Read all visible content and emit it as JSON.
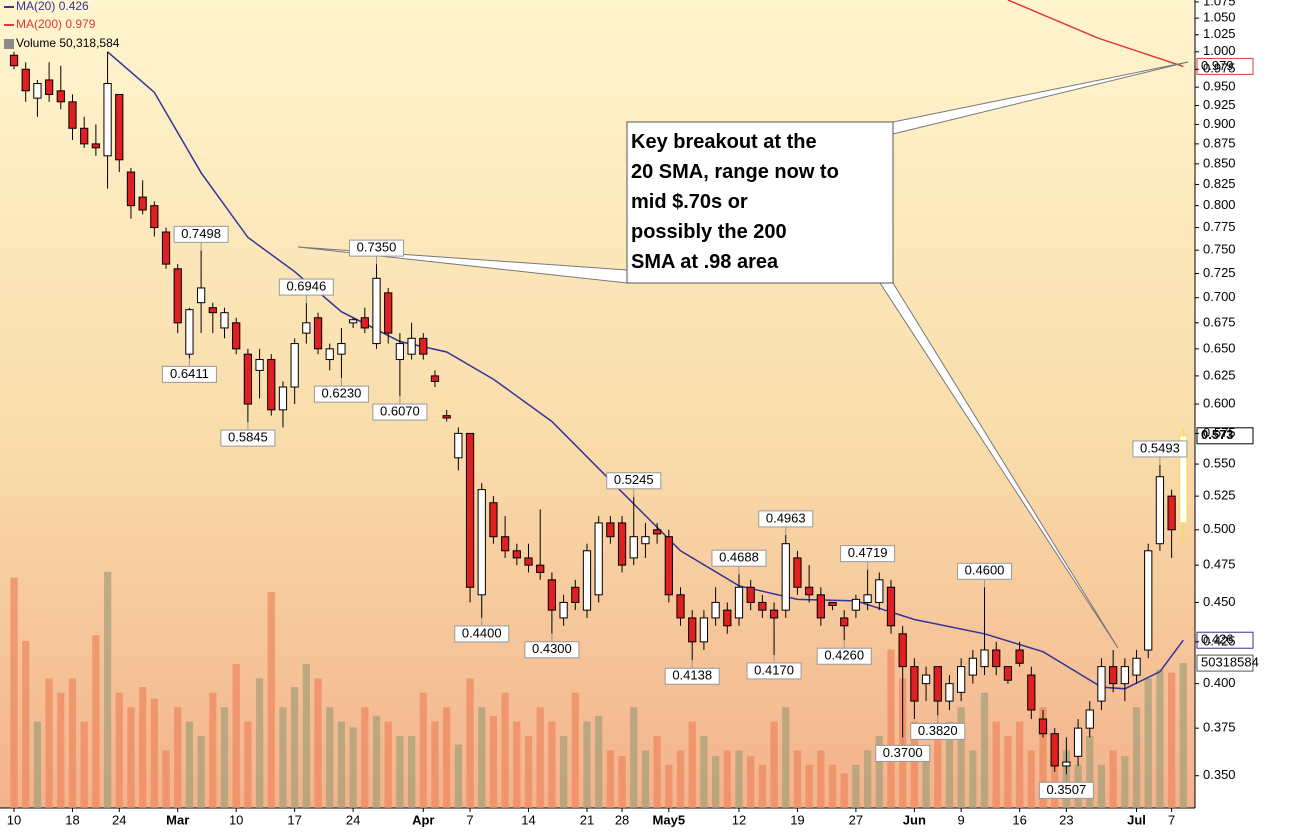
{
  "chart_data": {
    "type": "candlestick",
    "log": true,
    "grid": false,
    "xlim": [
      -1.2,
      101
    ],
    "ylim": [
      0.334,
      1.078
    ],
    "xticks": [
      {
        "value": 0,
        "label": "10"
      },
      {
        "value": 5,
        "label": "18"
      },
      {
        "value": 9,
        "label": "24"
      },
      {
        "value": 14,
        "label": "Mar"
      },
      {
        "value": 19,
        "label": "10"
      },
      {
        "value": 24,
        "label": "17"
      },
      {
        "value": 29,
        "label": "24"
      },
      {
        "value": 35,
        "label": "Apr"
      },
      {
        "value": 39,
        "label": "7"
      },
      {
        "value": 44,
        "label": "14"
      },
      {
        "value": 49,
        "label": "21"
      },
      {
        "value": 52,
        "label": "28"
      },
      {
        "value": 56,
        "label": "May5"
      },
      {
        "value": 62,
        "label": "12"
      },
      {
        "value": 67,
        "label": "19"
      },
      {
        "value": 72,
        "label": "27"
      },
      {
        "value": 77,
        "label": "Jun"
      },
      {
        "value": 81,
        "label": "9"
      },
      {
        "value": 86,
        "label": "16"
      },
      {
        "value": 90,
        "label": "23"
      },
      {
        "value": 96,
        "label": "Jul"
      },
      {
        "value": 99,
        "label": "7"
      }
    ],
    "yticks": [
      1.075,
      {
        "value": 1.05,
        "label": "1.050"
      },
      1.025,
      {
        "value": 1.0,
        "label": "1.000"
      },
      0.975,
      {
        "value": 0.95,
        "label": "0.950"
      },
      0.925,
      {
        "value": 0.9,
        "label": "0.900"
      },
      0.875,
      {
        "value": 0.85,
        "label": "0.850"
      },
      0.825,
      {
        "value": 0.8,
        "label": "0.800"
      },
      0.775,
      {
        "value": 0.75,
        "label": "0.750"
      },
      0.725,
      {
        "value": 0.7,
        "label": "0.700"
      },
      0.675,
      {
        "value": 0.65,
        "label": "0.650"
      },
      0.625,
      {
        "value": 0.6,
        "label": "0.600"
      },
      0.575,
      {
        "value": 0.55,
        "label": "0.550"
      },
      0.525,
      {
        "value": 0.5,
        "label": "0.500"
      },
      0.475,
      {
        "value": 0.45,
        "label": "0.450"
      },
      0.425,
      {
        "value": 0.4,
        "label": "0.400"
      },
      0.375,
      {
        "value": 0.35,
        "label": "0.350"
      }
    ],
    "up_color": "#ffffff",
    "down_color": "#e02020",
    "last_color": "#f0e040",
    "open": [
      0.995,
      0.975,
      0.935,
      0.96,
      0.945,
      0.93,
      0.895,
      0.875,
      0.86,
      0.94,
      0.84,
      0.81,
      0.8,
      0.77,
      0.73,
      0.645,
      0.695,
      0.69,
      0.67,
      0.675,
      0.645,
      0.63,
      0.64,
      0.595,
      0.615,
      0.665,
      0.68,
      0.64,
      0.645,
      0.675,
      0.68,
      0.655,
      0.705,
      0.64,
      0.645,
      0.66,
      0.625,
      0.59,
      0.555,
      0.575,
      0.455,
      0.52,
      0.495,
      0.485,
      0.48,
      0.475,
      0.465,
      0.44,
      0.46,
      0.445,
      0.455,
      0.505,
      0.505,
      0.48,
      0.49,
      0.5,
      0.495,
      0.455,
      0.44,
      0.425,
      0.44,
      0.445,
      0.44,
      0.46,
      0.45,
      0.445,
      0.445,
      0.48,
      0.46,
      0.455,
      0.45,
      0.44,
      0.445,
      0.45,
      0.45,
      0.46,
      0.43,
      0.41,
      0.4,
      0.41,
      0.39,
      0.395,
      0.405,
      0.41,
      0.42,
      0.41,
      0.42,
      0.405,
      0.38,
      0.372,
      0.355,
      0.36,
      0.375,
      0.39,
      0.41,
      0.4,
      0.405,
      0.42,
      0.49,
      0.525,
      0.505
    ],
    "high": [
      1.0,
      0.985,
      0.96,
      0.985,
      0.98,
      0.94,
      0.91,
      0.9,
      1.0,
      0.94,
      0.845,
      0.83,
      0.805,
      0.775,
      0.735,
      0.69,
      0.7498,
      0.695,
      0.69,
      0.68,
      0.65,
      0.65,
      0.645,
      0.62,
      0.66,
      0.6946,
      0.685,
      0.655,
      0.67,
      0.68,
      0.69,
      0.735,
      0.71,
      0.665,
      0.675,
      0.665,
      0.63,
      0.595,
      0.58,
      0.575,
      0.535,
      0.525,
      0.51,
      0.49,
      0.49,
      0.515,
      0.47,
      0.455,
      0.465,
      0.49,
      0.51,
      0.51,
      0.51,
      0.5245,
      0.505,
      0.505,
      0.5,
      0.46,
      0.445,
      0.445,
      0.46,
      0.45,
      0.4688,
      0.465,
      0.455,
      0.45,
      0.4963,
      0.485,
      0.475,
      0.46,
      0.45,
      0.445,
      0.455,
      0.4719,
      0.47,
      0.465,
      0.435,
      0.415,
      0.41,
      0.41,
      0.405,
      0.415,
      0.42,
      0.46,
      0.425,
      0.41,
      0.425,
      0.41,
      0.385,
      0.375,
      0.37,
      0.38,
      0.39,
      0.415,
      0.42,
      0.415,
      0.42,
      0.49,
      0.5493,
      0.53,
      0.58
    ],
    "low": [
      0.975,
      0.93,
      0.91,
      0.93,
      0.92,
      0.88,
      0.87,
      0.86,
      0.82,
      0.84,
      0.785,
      0.79,
      0.765,
      0.73,
      0.665,
      0.6411,
      0.665,
      0.665,
      0.66,
      0.645,
      0.5845,
      0.605,
      0.59,
      0.58,
      0.6,
      0.655,
      0.645,
      0.63,
      0.623,
      0.67,
      0.665,
      0.65,
      0.655,
      0.607,
      0.64,
      0.64,
      0.615,
      0.585,
      0.545,
      0.45,
      0.44,
      0.49,
      0.48,
      0.475,
      0.47,
      0.465,
      0.43,
      0.435,
      0.445,
      0.44,
      0.45,
      0.49,
      0.47,
      0.475,
      0.48,
      0.49,
      0.45,
      0.435,
      0.4138,
      0.42,
      0.435,
      0.43,
      0.435,
      0.445,
      0.44,
      0.417,
      0.44,
      0.455,
      0.45,
      0.435,
      0.445,
      0.426,
      0.44,
      0.445,
      0.445,
      0.43,
      0.37,
      0.38,
      0.39,
      0.382,
      0.385,
      0.39,
      0.4,
      0.405,
      0.405,
      0.4,
      0.41,
      0.38,
      0.37,
      0.352,
      0.3507,
      0.355,
      0.37,
      0.385,
      0.395,
      0.39,
      0.4,
      0.415,
      0.485,
      0.48,
      0.49
    ],
    "close": [
      0.98,
      0.945,
      0.955,
      0.94,
      0.93,
      0.895,
      0.875,
      0.87,
      0.955,
      0.855,
      0.8,
      0.795,
      0.775,
      0.735,
      0.675,
      0.688,
      0.71,
      0.685,
      0.685,
      0.65,
      0.6,
      0.64,
      0.595,
      0.615,
      0.655,
      0.675,
      0.65,
      0.65,
      0.655,
      0.678,
      0.67,
      0.72,
      0.665,
      0.655,
      0.66,
      0.645,
      0.62,
      0.588,
      0.575,
      0.46,
      0.53,
      0.495,
      0.485,
      0.48,
      0.475,
      0.47,
      0.445,
      0.45,
      0.45,
      0.485,
      0.505,
      0.495,
      0.475,
      0.495,
      0.495,
      0.497,
      0.455,
      0.44,
      0.425,
      0.44,
      0.45,
      0.435,
      0.46,
      0.45,
      0.445,
      0.44,
      0.49,
      0.46,
      0.455,
      0.44,
      0.448,
      0.435,
      0.452,
      0.455,
      0.465,
      0.435,
      0.41,
      0.39,
      0.405,
      0.39,
      0.4,
      0.41,
      0.415,
      0.42,
      0.41,
      0.402,
      0.412,
      0.385,
      0.372,
      0.355,
      0.357,
      0.375,
      0.385,
      0.41,
      0.4,
      0.41,
      0.415,
      0.485,
      0.54,
      0.5,
      0.573
    ],
    "high_labels": {
      "16": "0.7498",
      "25": "0.6946",
      "31": "0.7350",
      "53": "0.5245",
      "62": "0.4688",
      "66": "0.4963",
      "73": "0.4719",
      "83": "0.4600",
      "98": "0.5493"
    },
    "low_labels": {
      "15": "0.6411",
      "20": "0.5845",
      "28": "0.6230",
      "33": "0.6070",
      "40": "0.4400",
      "46": "0.4300",
      "58": "0.4138",
      "65": "0.4170",
      "71": "0.4260",
      "76": "0.3700",
      "79": "0.3820",
      "90": "0.3507"
    },
    "ma20": {
      "name": "MA(20)",
      "value": 0.426,
      "color": "#33339a",
      "x": [
        8,
        12,
        16,
        20,
        24,
        28,
        33,
        37,
        41,
        46,
        52,
        57,
        62,
        67,
        72,
        77,
        83,
        88,
        93,
        95,
        98,
        100
      ],
      "values": [
        1.0,
        0.943,
        0.839,
        0.764,
        0.727,
        0.686,
        0.657,
        0.647,
        0.622,
        0.585,
        0.528,
        0.485,
        0.461,
        0.452,
        0.451,
        0.439,
        0.43,
        0.419,
        0.398,
        0.397,
        0.407,
        0.426
      ]
    },
    "ma200": {
      "name": "MA(200)",
      "value": 0.979,
      "color": "#e03a3a",
      "x": [
        85,
        92.7,
        100
      ],
      "values": [
        1.078,
        1.02,
        0.979
      ]
    },
    "volume": {
      "name": "Volume",
      "last": {
        "value": 50318584,
        "label": "50,318,584"
      },
      "lim": [
        0,
        100000000
      ],
      "up_color": "#a8a07a",
      "down_color": "#ee8a60",
      "values": [
        80000000,
        58000000,
        30000000,
        45000000,
        40000000,
        45000000,
        30000000,
        60000000,
        82000000,
        40000000,
        35000000,
        42000000,
        38000000,
        20000000,
        35000000,
        30000000,
        25000000,
        40000000,
        35000000,
        50000000,
        30000000,
        45000000,
        75000000,
        35000000,
        42000000,
        50000000,
        45000000,
        35000000,
        30000000,
        28000000,
        35000000,
        32000000,
        30000000,
        25000000,
        25000000,
        40000000,
        30000000,
        35000000,
        22000000,
        45000000,
        35000000,
        32000000,
        40000000,
        30000000,
        25000000,
        35000000,
        30000000,
        25000000,
        40000000,
        30000000,
        32000000,
        20000000,
        18000000,
        35000000,
        20000000,
        25000000,
        15000000,
        20000000,
        30000000,
        25000000,
        18000000,
        20000000,
        20000000,
        18000000,
        15000000,
        30000000,
        35000000,
        20000000,
        15000000,
        20000000,
        15000000,
        12000000,
        15000000,
        20000000,
        25000000,
        55000000,
        45000000,
        30000000,
        20000000,
        25000000,
        30000000,
        35000000,
        20000000,
        40000000,
        30000000,
        25000000,
        30000000,
        20000000,
        35000000,
        15000000,
        20000000,
        15000000,
        25000000,
        15000000,
        20000000,
        18000000,
        35000000,
        45000000,
        48000000,
        47000000,
        50318584
      ]
    },
    "callout": [
      "Key breakout at the",
      "20 SMA, range now to",
      "mid $.70s or",
      "possibly the 200",
      "SMA at .98 area"
    ]
  }
}
